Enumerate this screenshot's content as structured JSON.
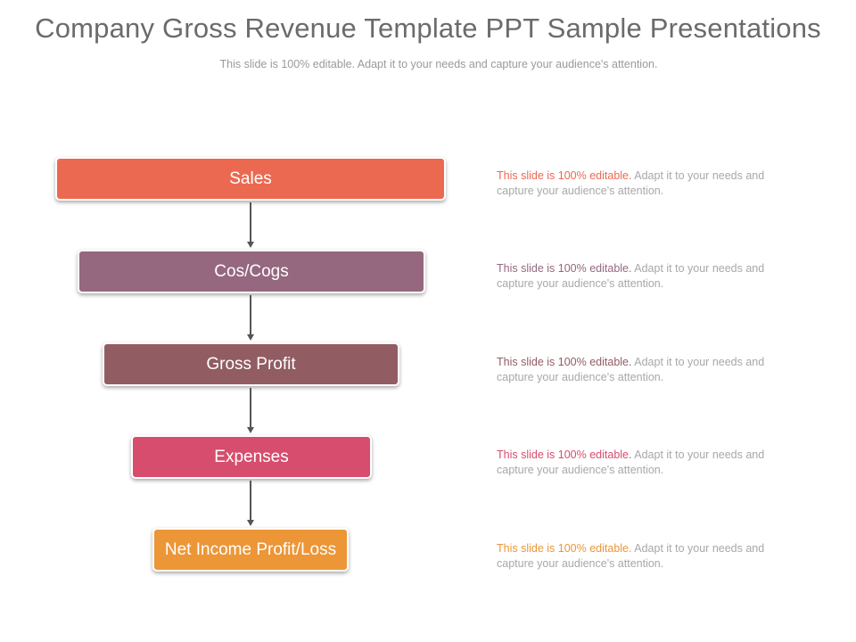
{
  "slide": {
    "title": "Company Gross Revenue Template PPT Sample Presentations",
    "subtitle": "This slide is 100% editable. Adapt it to your needs and capture your audience's attention."
  },
  "flow": {
    "steps": [
      {
        "label": "Sales",
        "color": "#ec6951",
        "desc_highlight": "This slide is 100% editable.",
        "desc_line1_rest": " Adapt it to your needs and",
        "desc_line2": "capture your audience's  attention."
      },
      {
        "label": "Cos/Cogs",
        "color": "#95687f",
        "desc_highlight": "This slide is 100% editable.",
        "desc_line1_rest": " Adapt it to your needs and",
        "desc_line2": "capture your audience's  attention."
      },
      {
        "label": "Gross Profit",
        "color": "#925c63",
        "desc_highlight": "This slide is 100% editable.",
        "desc_line1_rest": " Adapt it to your needs and",
        "desc_line2": "capture your audience's  attention."
      },
      {
        "label": "Expenses",
        "color": "#d74d6d",
        "desc_highlight": "This slide is 100% editable.",
        "desc_line1_rest": " Adapt it to your needs and",
        "desc_line2": "capture your audience's  attention."
      },
      {
        "label": "Net Income Profit/Loss",
        "color": "#ec9637",
        "desc_highlight": "This slide is 100% editable.",
        "desc_line1_rest": " Adapt it to your needs and",
        "desc_line2": "capture your audience's  attention."
      }
    ]
  }
}
